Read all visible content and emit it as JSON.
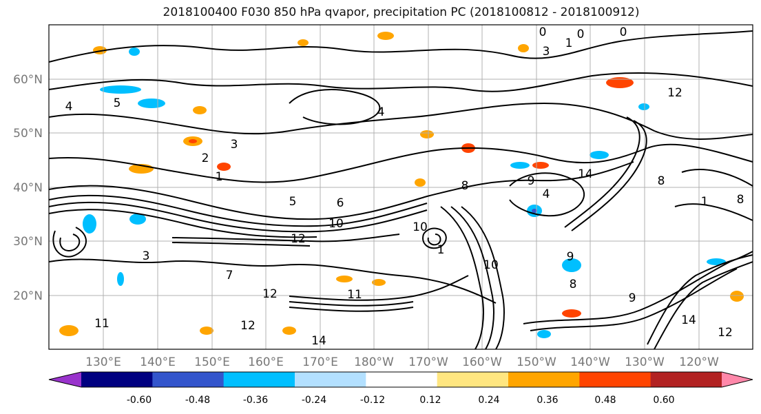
{
  "title": "2018100400 F030 850 hPa qvapor, precipitation PC (2018100812 - 2018100912)",
  "map": {
    "lat_labels": [
      "60°N",
      "50°N",
      "40°N",
      "30°N",
      "20°N"
    ],
    "lon_labels": [
      "130°E",
      "140°E",
      "150°E",
      "160°E",
      "170°E",
      "180°W",
      "170°W",
      "160°W",
      "150°W",
      "140°W",
      "130°W",
      "120°W"
    ],
    "contour_labels": [
      "0",
      "0",
      "0",
      "1",
      "3",
      "4",
      "5",
      "3",
      "2",
      "1",
      "4",
      "5",
      "8",
      "9",
      "4",
      "8",
      "10",
      "10",
      "12",
      "10",
      "11",
      "12",
      "14",
      "14",
      "11",
      "12",
      "12",
      "1",
      "3",
      "9",
      "8",
      "7",
      "9",
      "14",
      "12",
      "1",
      "6",
      "8"
    ]
  },
  "colorbar": {
    "tick_labels": [
      "-0.60",
      "-0.48",
      "-0.36",
      "-0.24",
      "-0.12",
      "0.12",
      "0.24",
      "0.36",
      "0.48",
      "0.60"
    ],
    "colors": [
      "#9933cc",
      "#000080",
      "#3355cc",
      "#00bfff",
      "#b3e0ff",
      "#ffffff",
      "#ffe680",
      "#ffa500",
      "#ff4400",
      "#b22222",
      "#ff88aa"
    ]
  },
  "styles": {
    "axis_label_color": "#777777",
    "grid_color": "#b0b0b0"
  }
}
